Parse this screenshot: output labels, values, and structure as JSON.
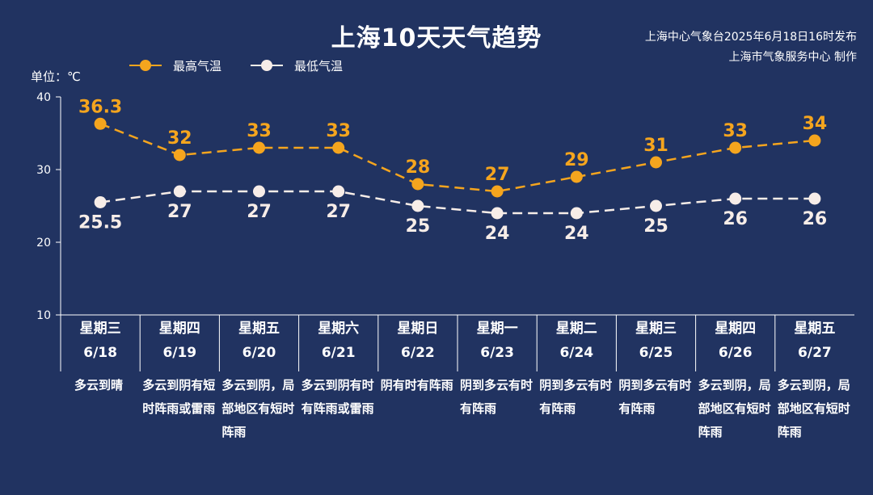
{
  "header": {
    "title": "上海10天天气趋势",
    "publisher_line1": "上海中心气象台2025年6月18日16时发布",
    "publisher_line2": "上海市气象服务中心 制作"
  },
  "unit_label": "单位：℃",
  "colors": {
    "background": "#213361",
    "high": "#F5A51E",
    "low": "#F7EDE8",
    "axis": "#FFFFFF"
  },
  "chart_data": {
    "type": "line",
    "categories": [
      "6/18",
      "6/19",
      "6/20",
      "6/21",
      "6/22",
      "6/23",
      "6/24",
      "6/25",
      "6/26",
      "6/27"
    ],
    "weekdays": [
      "星期三",
      "星期四",
      "星期五",
      "星期六",
      "星期日",
      "星期一",
      "星期二",
      "星期三",
      "星期四",
      "星期五"
    ],
    "descriptions": [
      "多云到晴",
      "多云到阴有短时阵雨或雷雨",
      "多云到阴，局部地区有短时阵雨",
      "多云到阴有时有阵雨或雷雨",
      "阴有时有阵雨",
      "阴到多云有时有阵雨",
      "阴到多云有时有阵雨",
      "阴到多云有时有阵雨",
      "多云到阴，局部地区有短时阵雨",
      "多云到阴，局部地区有短时阵雨"
    ],
    "series": [
      {
        "name": "最高气温",
        "values": [
          36.3,
          32,
          33,
          33,
          28,
          27,
          29,
          31,
          33,
          34
        ],
        "labels": [
          "36.3",
          "32",
          "33",
          "33",
          "28",
          "27",
          "29",
          "31",
          "33",
          "34"
        ]
      },
      {
        "name": "最低气温",
        "values": [
          25.5,
          27,
          27,
          27,
          25,
          24,
          24,
          25,
          26,
          26
        ],
        "labels": [
          "25.5",
          "27",
          "27",
          "27",
          "25",
          "24",
          "24",
          "25",
          "26",
          "26"
        ]
      }
    ],
    "yticks": [
      "10",
      "20",
      "30",
      "40"
    ],
    "ylim": [
      10,
      40
    ],
    "grid": false,
    "legend_position": "top-left"
  }
}
